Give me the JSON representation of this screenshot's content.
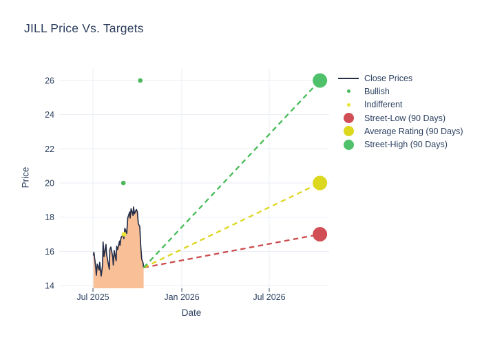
{
  "title": "JILL Price Vs. Targets",
  "axes": {
    "x_label": "Date",
    "y_label": "Price"
  },
  "legend": {
    "items": [
      {
        "label": "Close Prices",
        "marker": "line",
        "color": "#262f49"
      },
      {
        "label": "Bullish",
        "marker": "dot-small",
        "color": "#4bb75a"
      },
      {
        "label": "Indifferent",
        "marker": "dot-small",
        "color": "#e9e430"
      },
      {
        "label": "Street-Low (90 Days)",
        "marker": "dot-large",
        "color": "#d04e54"
      },
      {
        "label": "Average Rating (90 Days)",
        "marker": "dot-large",
        "color": "#dcd71f"
      },
      {
        "label": "Street-High (90 Days)",
        "marker": "dot-large",
        "color": "#4ec16a"
      }
    ]
  },
  "chart_data": {
    "type": "line",
    "title": "JILL Price Vs. Targets",
    "xlabel": "Date",
    "ylabel": "Price",
    "ylim": [
      13.8,
      26.9
    ],
    "xlim": [
      "2025-05-01",
      "2026-11-02"
    ],
    "grid": true,
    "legend_position": "right",
    "y_ticks": [
      14,
      16,
      18,
      20,
      22,
      24,
      26
    ],
    "x_ticks": [
      {
        "date": "2025-07-01",
        "label": "Jul 2025"
      },
      {
        "date": "2026-01-01",
        "label": "Jan 2026"
      },
      {
        "date": "2026-07-01",
        "label": "Jul 2026"
      }
    ],
    "close_prices": {
      "name": "Close Prices",
      "line_color": "#262f49",
      "fill_color": "#f9c098",
      "points": [
        [
          "2025-07-02",
          15.75
        ],
        [
          "2025-07-03",
          15.95
        ],
        [
          "2025-07-07",
          15.0
        ],
        [
          "2025-07-08",
          14.6
        ],
        [
          "2025-07-10",
          15.25
        ],
        [
          "2025-07-14",
          14.9
        ],
        [
          "2025-07-15",
          15.35
        ],
        [
          "2025-07-17",
          14.8
        ],
        [
          "2025-07-18",
          14.55
        ],
        [
          "2025-07-21",
          15.2
        ],
        [
          "2025-07-22",
          16.55
        ],
        [
          "2025-07-24",
          15.7
        ],
        [
          "2025-07-28",
          16.4
        ],
        [
          "2025-07-29",
          15.9
        ],
        [
          "2025-07-31",
          15.55
        ],
        [
          "2025-08-04",
          14.95
        ],
        [
          "2025-08-05",
          16.1
        ],
        [
          "2025-08-07",
          16.25
        ],
        [
          "2025-08-11",
          15.65
        ],
        [
          "2025-08-12",
          15.2
        ],
        [
          "2025-08-14",
          16.05
        ],
        [
          "2025-08-18",
          15.45
        ],
        [
          "2025-08-19",
          16.3
        ],
        [
          "2025-08-21",
          16.1
        ],
        [
          "2025-08-25",
          16.6
        ],
        [
          "2025-08-26",
          16.35
        ],
        [
          "2025-08-28",
          16.8
        ],
        [
          "2025-09-02",
          17.0
        ],
        [
          "2025-09-03",
          16.75
        ],
        [
          "2025-09-05",
          17.35
        ],
        [
          "2025-09-09",
          17.05
        ],
        [
          "2025-09-11",
          17.95
        ],
        [
          "2025-09-15",
          18.3
        ],
        [
          "2025-09-16",
          17.95
        ],
        [
          "2025-09-18",
          18.5
        ],
        [
          "2025-09-22",
          18.1
        ],
        [
          "2025-09-23",
          18.6
        ],
        [
          "2025-09-25",
          18.2
        ],
        [
          "2025-09-29",
          18.45
        ],
        [
          "2025-10-01",
          18.3
        ],
        [
          "2025-10-03",
          17.6
        ],
        [
          "2025-10-06",
          17.45
        ],
        [
          "2025-10-08",
          16.3
        ],
        [
          "2025-10-10",
          15.55
        ],
        [
          "2025-10-13",
          15.3
        ],
        [
          "2025-10-14",
          15.05
        ]
      ]
    },
    "ratings": [
      {
        "name": "Bullish",
        "color": "#4bb75a",
        "points": [
          [
            "2025-09-02",
            20
          ],
          [
            "2025-10-07",
            26
          ]
        ]
      },
      {
        "name": "Indifferent",
        "color": "#e9e430",
        "points": [
          [
            "2025-09-03",
            17
          ]
        ]
      }
    ],
    "targets": {
      "anchor": [
        "2025-10-14",
        15.05
      ],
      "end_date": "2026-10-14",
      "items": [
        {
          "name": "Street-Low (90 Days)",
          "value": 17,
          "marker_color": "#d04e54",
          "line_color": "#cc4a4c"
        },
        {
          "name": "Average Rating (90 Days)",
          "value": 20,
          "marker_color": "#dcd71f",
          "line_color": "#ddd71e"
        },
        {
          "name": "Street-High (90 Days)",
          "value": 26,
          "marker_color": "#4ec16a",
          "line_color": "#46bb55"
        }
      ]
    },
    "style": {
      "grid_color": "#e8edf4",
      "text_color": "#2a3f5f",
      "tick_font_size": 12
    }
  }
}
